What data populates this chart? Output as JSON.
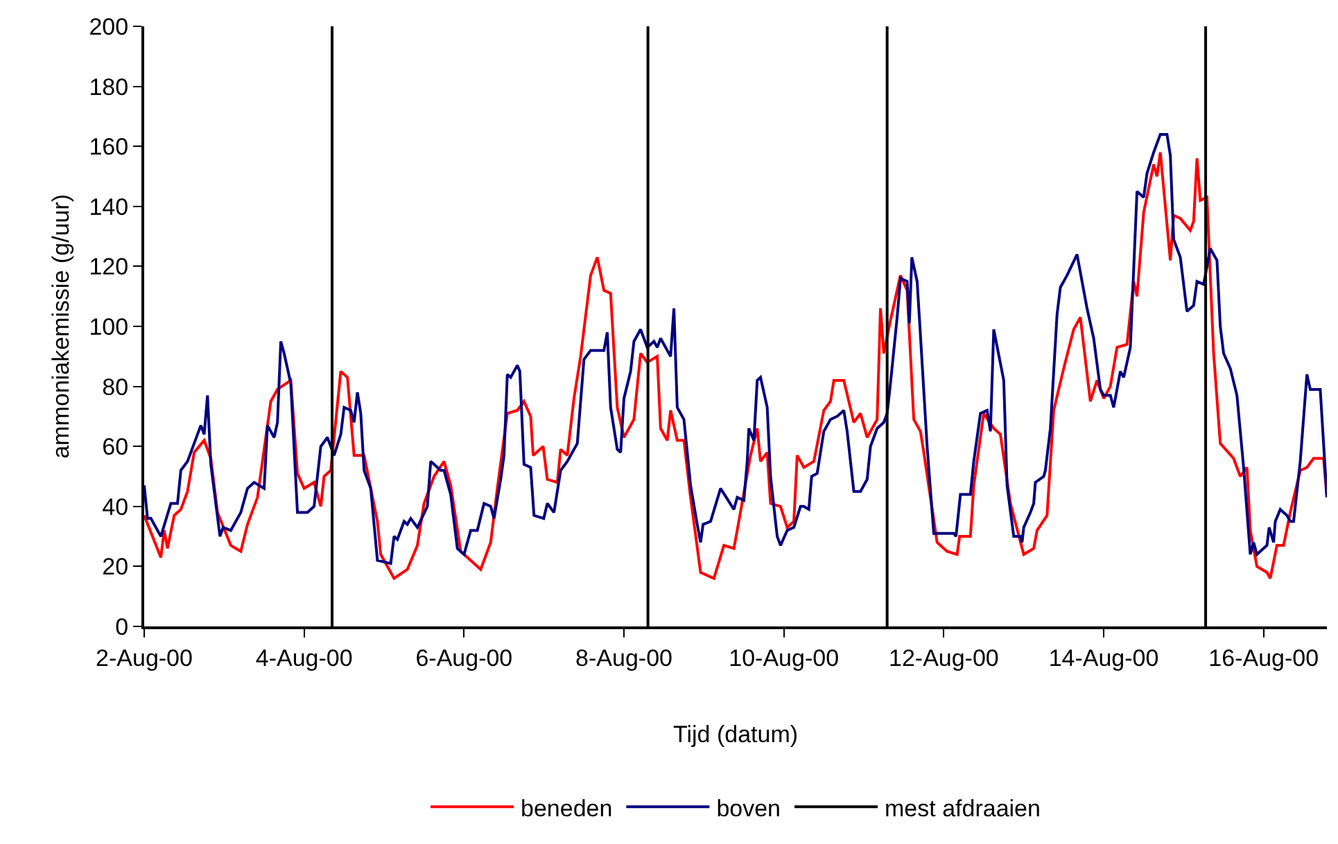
{
  "chart_data": {
    "type": "line",
    "xlabel": "Tijd (datum)",
    "ylabel": "ammoniakemissie (g/uur)",
    "xlim": [
      "2000-08-02T00:00",
      "2000-08-16T19:00"
    ],
    "xticks": [
      {
        "value": "2000-08-02",
        "label": "2-Aug-00"
      },
      {
        "value": "2000-08-04",
        "label": "4-Aug-00"
      },
      {
        "value": "2000-08-06",
        "label": "6-Aug-00"
      },
      {
        "value": "2000-08-08",
        "label": "8-Aug-00"
      },
      {
        "value": "2000-08-10",
        "label": "10-Aug-00"
      },
      {
        "value": "2000-08-12",
        "label": "12-Aug-00"
      },
      {
        "value": "2000-08-14",
        "label": "14-Aug-00"
      },
      {
        "value": "2000-08-16",
        "label": "16-Aug-00"
      }
    ],
    "ylim": [
      0,
      200
    ],
    "yticks": [
      0,
      20,
      40,
      60,
      80,
      100,
      120,
      140,
      160,
      180,
      200
    ],
    "legend": "bottom",
    "marker": "none",
    "line_style": "solid",
    "series": [
      {
        "name": "beneden",
        "color": "#ff0000",
        "x": [
          "2000-08-02T00:00",
          "2000-08-02T05:00",
          "2000-08-02T06:00",
          "2000-08-02T07:00",
          "2000-08-02T09:00",
          "2000-08-02T11:00",
          "2000-08-02T13:00",
          "2000-08-02T15:00",
          "2000-08-02T18:00",
          "2000-08-02T20:00",
          "2000-08-02T22:00",
          "2000-08-03T02:00",
          "2000-08-03T05:00",
          "2000-08-03T07:00",
          "2000-08-03T10:00",
          "2000-08-03T14:00",
          "2000-08-03T16:00",
          "2000-08-03T20:00",
          "2000-08-03T22:00",
          "2000-08-04T00:00",
          "2000-08-04T03:00",
          "2000-08-04T05:00",
          "2000-08-04T06:00",
          "2000-08-04T08:00",
          "2000-08-04T11:00",
          "2000-08-04T13:00",
          "2000-08-04T15:00",
          "2000-08-04T18:00",
          "2000-08-04T22:00",
          "2000-08-04T23:00",
          "2000-08-05T03:00",
          "2000-08-05T07:00",
          "2000-08-05T10:00",
          "2000-08-05T12:00",
          "2000-08-05T15:00",
          "2000-08-05T18:00",
          "2000-08-05T20:00",
          "2000-08-05T23:00",
          "2000-08-06T00:00",
          "2000-08-06T05:00",
          "2000-08-06T08:00",
          "2000-08-06T10:00",
          "2000-08-06T13:00",
          "2000-08-06T16:00",
          "2000-08-06T18:00",
          "2000-08-06T20:00",
          "2000-08-06T20:45",
          "2000-08-06T23:45",
          "2000-08-07T01:00",
          "2000-08-07T04:00",
          "2000-08-07T05:00",
          "2000-08-07T07:00",
          "2000-08-07T09:00",
          "2000-08-07T11:00",
          "2000-08-07T14:00",
          "2000-08-07T16:00",
          "2000-08-07T18:00",
          "2000-08-07T20:00",
          "2000-08-07T22:00",
          "2000-08-08T00:00",
          "2000-08-08T03:00",
          "2000-08-08T05:00",
          "2000-08-08T07:00",
          "2000-08-08T10:00",
          "2000-08-08T11:00",
          "2000-08-08T13:00",
          "2000-08-08T14:00",
          "2000-08-08T16:00",
          "2000-08-08T18:00",
          "2000-08-08T20:00",
          "2000-08-08T23:00",
          "2000-08-09T03:00",
          "2000-08-09T06:00",
          "2000-08-09T09:00",
          "2000-08-09T10:00",
          "2000-08-09T14:00",
          "2000-08-09T16:00",
          "2000-08-09T17:00",
          "2000-08-09T19:00",
          "2000-08-09T20:00",
          "2000-08-09T23:00",
          "2000-08-10T01:00",
          "2000-08-10T03:00",
          "2000-08-10T04:00",
          "2000-08-10T06:00",
          "2000-08-10T09:00",
          "2000-08-10T12:00",
          "2000-08-10T14:00",
          "2000-08-10T15:00",
          "2000-08-10T18:00",
          "2000-08-10T21:00",
          "2000-08-10T23:00",
          "2000-08-11T01:00",
          "2000-08-11T04:00",
          "2000-08-11T05:00",
          "2000-08-11T06:00",
          "2000-08-11T08:00",
          "2000-08-11T11:00",
          "2000-08-11T13:00",
          "2000-08-11T15:00",
          "2000-08-11T17:00",
          "2000-08-11T18:00",
          "2000-08-11T22:00",
          "2000-08-12T01:00",
          "2000-08-12T04:00",
          "2000-08-12T04:45",
          "2000-08-12T08:00",
          "2000-08-12T09:00",
          "2000-08-12T12:00",
          "2000-08-12T15:00",
          "2000-08-12T17:00",
          "2000-08-12T20:00",
          "2000-08-13T00:00",
          "2000-08-13T03:00",
          "2000-08-13T04:00",
          "2000-08-13T07:00",
          "2000-08-13T09:00",
          "2000-08-13T12:00",
          "2000-08-13T15:00",
          "2000-08-13T17:00",
          "2000-08-13T20:00",
          "2000-08-13T22:00",
          "2000-08-14T00:00",
          "2000-08-14T02:00",
          "2000-08-14T04:00",
          "2000-08-14T07:00",
          "2000-08-14T09:00",
          "2000-08-14T10:00",
          "2000-08-14T12:00",
          "2000-08-14T15:00",
          "2000-08-14T16:00",
          "2000-08-14T17:00",
          "2000-08-14T20:00",
          "2000-08-14T21:00",
          "2000-08-14T23:00",
          "2000-08-15T02:00",
          "2000-08-15T03:00",
          "2000-08-15T04:00",
          "2000-08-15T05:00",
          "2000-08-15T07:00",
          "2000-08-15T09:00",
          "2000-08-15T11:00",
          "2000-08-15T15:00",
          "2000-08-15T17:00",
          "2000-08-15T19:00",
          "2000-08-15T20:00",
          "2000-08-15T22:00",
          "2000-08-16T01:00",
          "2000-08-16T02:00",
          "2000-08-16T04:00",
          "2000-08-16T06:00",
          "2000-08-16T08:00",
          "2000-08-16T11:00",
          "2000-08-16T13:00",
          "2000-08-16T15:00",
          "2000-08-16T18:00",
          "2000-08-16T19:00"
        ],
        "values": [
          37,
          23,
          32,
          26,
          37,
          39,
          45,
          58,
          62,
          56,
          38,
          27,
          25,
          34,
          43,
          75,
          79,
          82,
          51,
          46,
          48,
          40,
          50,
          52,
          85,
          83,
          57,
          57,
          35,
          24,
          16,
          19,
          27,
          41,
          50,
          55,
          47,
          25,
          24,
          19,
          28,
          46,
          71,
          72,
          75,
          70,
          57,
          60,
          49,
          48,
          59,
          57,
          76,
          90,
          117,
          123,
          112,
          111,
          73,
          63,
          69,
          91,
          88,
          90,
          66,
          62,
          72,
          62,
          62,
          43,
          18,
          16,
          27,
          26,
          32,
          57,
          66,
          55,
          58,
          41,
          40,
          33,
          35,
          57,
          53,
          55,
          72,
          75,
          82,
          82,
          68,
          71,
          63,
          69,
          106,
          91,
          102,
          117,
          112,
          69,
          65,
          58,
          28,
          25,
          24,
          30,
          30,
          47,
          71,
          66,
          64,
          41,
          24,
          26,
          32,
          37,
          72,
          86,
          99,
          103,
          75,
          82,
          76,
          80,
          93,
          94,
          115,
          110,
          138,
          154,
          150,
          158,
          122,
          137,
          136,
          132,
          135,
          156,
          142,
          143,
          91,
          61,
          56,
          50,
          53,
          32,
          20,
          18,
          16,
          27,
          27,
          38,
          52,
          53,
          56,
          56,
          43
        ]
      },
      {
        "name": "boven",
        "color": "#000080",
        "x": [
          "2000-08-02T00:00",
          "2000-08-02T01:00",
          "2000-08-02T02:00",
          "2000-08-02T05:00",
          "2000-08-02T08:00",
          "2000-08-02T10:00",
          "2000-08-02T11:00",
          "2000-08-02T13:00",
          "2000-08-02T15:00",
          "2000-08-02T17:00",
          "2000-08-02T18:00",
          "2000-08-02T19:00",
          "2000-08-02T20:00",
          "2000-08-02T22:45",
          "2000-08-02T23:40",
          "2000-08-03T02:00",
          "2000-08-03T05:00",
          "2000-08-03T07:00",
          "2000-08-03T09:00",
          "2000-08-03T12:00",
          "2000-08-03T13:00",
          "2000-08-03T15:00",
          "2000-08-03T16:00",
          "2000-08-03T17:00",
          "2000-08-03T18:00",
          "2000-08-03T20:00",
          "2000-08-03T22:00",
          "2000-08-04T01:00",
          "2000-08-04T03:00",
          "2000-08-04T05:00",
          "2000-08-04T07:00",
          "2000-08-04T09:00",
          "2000-08-04T11:00",
          "2000-08-04T12:00",
          "2000-08-04T14:00",
          "2000-08-04T15:00",
          "2000-08-04T16:00",
          "2000-08-04T17:00",
          "2000-08-04T18:00",
          "2000-08-04T20:00",
          "2000-08-04T22:00",
          "2000-08-05T02:00",
          "2000-08-05T03:00",
          "2000-08-05T04:00",
          "2000-08-05T06:00",
          "2000-08-05T07:00",
          "2000-08-05T08:00",
          "2000-08-05T10:00",
          "2000-08-05T13:00",
          "2000-08-05T14:00",
          "2000-08-05T17:00",
          "2000-08-05T18:00",
          "2000-08-05T20:00",
          "2000-08-05T22:00",
          "2000-08-06T00:00",
          "2000-08-06T02:00",
          "2000-08-06T04:00",
          "2000-08-06T06:00",
          "2000-08-06T08:00",
          "2000-08-06T09:00",
          "2000-08-06T11:00",
          "2000-08-06T12:00",
          "2000-08-06T13:00",
          "2000-08-06T14:00",
          "2000-08-06T16:00",
          "2000-08-06T16:45",
          "2000-08-06T18:00",
          "2000-08-06T20:00",
          "2000-08-06T21:00",
          "2000-08-06T23:55",
          "2000-08-07T01:00",
          "2000-08-07T03:00",
          "2000-08-07T05:00",
          "2000-08-07T07:00",
          "2000-08-07T08:00",
          "2000-08-07T10:00",
          "2000-08-07T12:00",
          "2000-08-07T14:00",
          "2000-08-07T16:00",
          "2000-08-07T18:00",
          "2000-08-07T19:00",
          "2000-08-07T20:00",
          "2000-08-07T22:00",
          "2000-08-07T23:00",
          "2000-08-08T00:00",
          "2000-08-08T02:00",
          "2000-08-08T03:00",
          "2000-08-08T05:00",
          "2000-08-08T07:00",
          "2000-08-08T09:00",
          "2000-08-08T10:00",
          "2000-08-08T11:00",
          "2000-08-08T14:00",
          "2000-08-08T15:00",
          "2000-08-08T16:00",
          "2000-08-08T18:00",
          "2000-08-08T20:00",
          "2000-08-08T22:00",
          "2000-08-08T23:00",
          "2000-08-08T23:45",
          "2000-08-09T02:00",
          "2000-08-09T05:00",
          "2000-08-09T09:00",
          "2000-08-09T10:00",
          "2000-08-09T12:00",
          "2000-08-09T13:00",
          "2000-08-09T13:30",
          "2000-08-09T15:00",
          "2000-08-09T16:00",
          "2000-08-09T17:00",
          "2000-08-09T19:00",
          "2000-08-09T20:00",
          "2000-08-09T22:00",
          "2000-08-09T23:00",
          "2000-08-10T01:00",
          "2000-08-10T03:00",
          "2000-08-10T05:00",
          "2000-08-10T06:00",
          "2000-08-10T07:30",
          "2000-08-10T08:20",
          "2000-08-10T10:00",
          "2000-08-10T12:00",
          "2000-08-10T14:00",
          "2000-08-10T16:00",
          "2000-08-10T18:00",
          "2000-08-10T19:00",
          "2000-08-10T21:00",
          "2000-08-10T23:00",
          "2000-08-11T01:00",
          "2000-08-11T02:00",
          "2000-08-11T04:00",
          "2000-08-11T06:00",
          "2000-08-11T07:00",
          "2000-08-11T08:00",
          "2000-08-11T10:00",
          "2000-08-11T11:00",
          "2000-08-11T13:00",
          "2000-08-11T13:40",
          "2000-08-11T14:25",
          "2000-08-11T16:00",
          "2000-08-11T17:00",
          "2000-08-11T19:00",
          "2000-08-11T21:00",
          "2000-08-12T03:00",
          "2000-08-12T03:40",
          "2000-08-12T05:00",
          "2000-08-12T08:00",
          "2000-08-12T09:00",
          "2000-08-12T11:00",
          "2000-08-12T13:00",
          "2000-08-12T14:00",
          "2000-08-12T15:00",
          "2000-08-12T18:00",
          "2000-08-12T19:00",
          "2000-08-12T21:00",
          "2000-08-12T23:00",
          "2000-08-12T23:30",
          "2000-08-13T00:00",
          "2000-08-13T02:00",
          "2000-08-13T03:00",
          "2000-08-13T03:30",
          "2000-08-13T06:00",
          "2000-08-13T06:30",
          "2000-08-13T08:00",
          "2000-08-13T10:00",
          "2000-08-13T11:00",
          "2000-08-13T13:00",
          "2000-08-13T16:00",
          "2000-08-13T17:00",
          "2000-08-13T19:00",
          "2000-08-13T21:00",
          "2000-08-13T23:00",
          "2000-08-14T00:00",
          "2000-08-14T02:00",
          "2000-08-14T03:00",
          "2000-08-14T05:00",
          "2000-08-14T06:00",
          "2000-08-14T08:00",
          "2000-08-14T10:00",
          "2000-08-14T12:00",
          "2000-08-14T13:00",
          "2000-08-14T15:00",
          "2000-08-14T17:00",
          "2000-08-14T19:00",
          "2000-08-14T20:00",
          "2000-08-14T21:00",
          "2000-08-14T23:00",
          "2000-08-15T01:00",
          "2000-08-15T03:00",
          "2000-08-15T04:00",
          "2000-08-15T06:00",
          "2000-08-15T08:00",
          "2000-08-15T10:00",
          "2000-08-15T11:00",
          "2000-08-15T12:00",
          "2000-08-15T14:00",
          "2000-08-15T16:00",
          "2000-08-15T18:00",
          "2000-08-15T20:00",
          "2000-08-15T21:00",
          "2000-08-15T22:00",
          "2000-08-16T01:00",
          "2000-08-16T01:40",
          "2000-08-16T03:00",
          "2000-08-16T03:30",
          "2000-08-16T05:00",
          "2000-08-16T07:00",
          "2000-08-16T08:00",
          "2000-08-16T09:00",
          "2000-08-16T11:00",
          "2000-08-16T13:00",
          "2000-08-16T14:00",
          "2000-08-16T17:00",
          "2000-08-16T19:00"
        ],
        "values": [
          47,
          36,
          36,
          30,
          41,
          41,
          52,
          55,
          61,
          67,
          64,
          77,
          54,
          30,
          33,
          32,
          38,
          46,
          48,
          46,
          67,
          63,
          68,
          95,
          91,
          81,
          38,
          38,
          40,
          60,
          63,
          57,
          64,
          73,
          72,
          68,
          78,
          71,
          52,
          46,
          22,
          21,
          30,
          29,
          35,
          34,
          36,
          33,
          40,
          55,
          52,
          52,
          44,
          26,
          24,
          32,
          32,
          41,
          40,
          36,
          49,
          57,
          84,
          83,
          87,
          85,
          54,
          53,
          37,
          36,
          41,
          38,
          52,
          55,
          57,
          61,
          89,
          92,
          92,
          92,
          98,
          73,
          59,
          58,
          76,
          85,
          95,
          99,
          93,
          95,
          93,
          96,
          90,
          106,
          73,
          69,
          47,
          34,
          28,
          34,
          35,
          46,
          39,
          43,
          42,
          55,
          66,
          62,
          82,
          83,
          73,
          50,
          30,
          27,
          32,
          33,
          40,
          40,
          39,
          50,
          51,
          65,
          69,
          70,
          72,
          65,
          45,
          45,
          49,
          60,
          66,
          68,
          71,
          81,
          103,
          116,
          115,
          101,
          123,
          115,
          97,
          60,
          31,
          31,
          30,
          44,
          44,
          55,
          71,
          72,
          65,
          99,
          82,
          47,
          30,
          30,
          28,
          33,
          38,
          41,
          48,
          50,
          52,
          66,
          104,
          113,
          117,
          124,
          118,
          106,
          96,
          79,
          77,
          77,
          73,
          85,
          83,
          93,
          145,
          143,
          151,
          158,
          164,
          164,
          157,
          129,
          123,
          105,
          107,
          115,
          114,
          126,
          122,
          100,
          91,
          86,
          77,
          53,
          24,
          28,
          24,
          27,
          33,
          28,
          35,
          39,
          37,
          35,
          35,
          55,
          84,
          79,
          79,
          43
        ]
      }
    ],
    "ref_lines": [
      {
        "axis": "x",
        "value": "2000-08-04T08:24",
        "label": "mest afdraaien",
        "color": "#000000"
      },
      {
        "axis": "x",
        "value": "2000-08-08T07:12",
        "color": "#000000"
      },
      {
        "axis": "x",
        "value": "2000-08-11T07:00",
        "color": "#000000"
      },
      {
        "axis": "x",
        "value": "2000-08-15T06:36",
        "color": "#000000"
      }
    ]
  }
}
